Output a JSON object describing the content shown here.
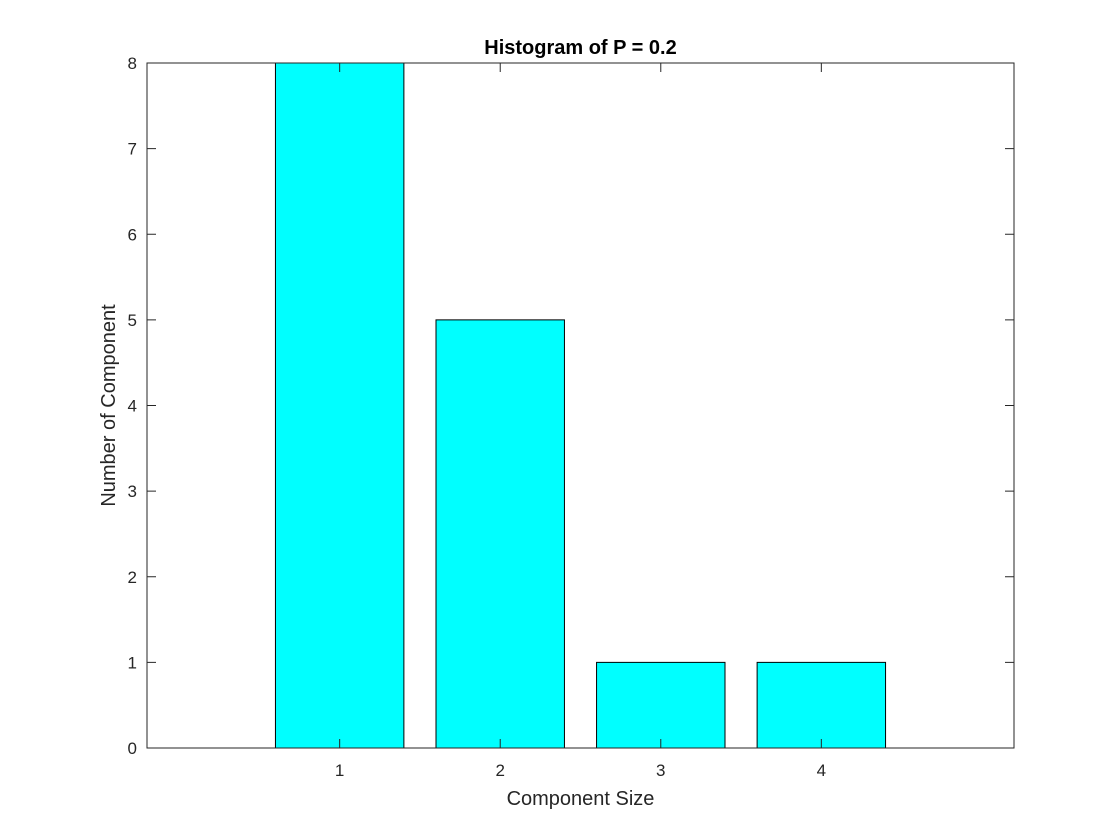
{
  "chart_data": {
    "type": "bar",
    "title": "Histogram of P = 0.2",
    "xlabel": "Component Size",
    "ylabel": "Number of Component",
    "categories": [
      "1",
      "2",
      "3",
      "4"
    ],
    "x": [
      1,
      2,
      3,
      4
    ],
    "values": [
      8,
      5,
      1,
      1
    ],
    "xlim": [
      -0.2,
      5.2
    ],
    "ylim": [
      0,
      8
    ],
    "yticks": [
      0,
      1,
      2,
      3,
      4,
      5,
      6,
      7,
      8
    ],
    "grid": false,
    "bar_color": "#00ffff",
    "bar_edge_color": "#000000"
  }
}
